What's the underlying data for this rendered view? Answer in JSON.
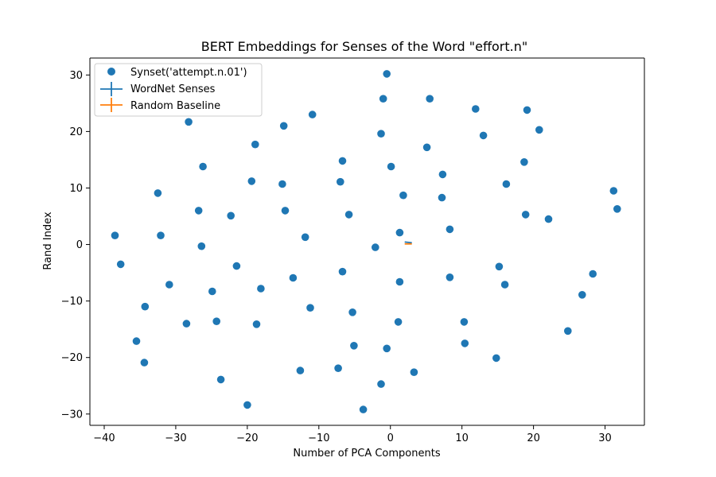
{
  "chart_data": {
    "type": "scatter",
    "title": "BERT Embeddings for Senses of the Word \"effort.n\"",
    "xlabel": "Number of PCA Components",
    "ylabel": "Rand Index",
    "xlim": [
      -42,
      35.5
    ],
    "ylim": [
      -32,
      33
    ],
    "xticks": [
      -40,
      -30,
      -20,
      -10,
      0,
      10,
      20,
      30
    ],
    "yticks": [
      -30,
      -20,
      -10,
      0,
      10,
      20,
      30
    ],
    "xtick_labels": [
      "−40",
      "−30",
      "−20",
      "−10",
      "0",
      "10",
      "20",
      "30"
    ],
    "ytick_labels": [
      "−30",
      "−20",
      "−10",
      "0",
      "10",
      "20",
      "30"
    ],
    "grid": false,
    "legend_position": "top-left",
    "series": [
      {
        "name": "Synset('attempt.n.01')",
        "kind": "scatter",
        "color": "#1f77b4",
        "points": [
          [
            -0.5,
            30.2
          ],
          [
            -1.0,
            25.8
          ],
          [
            5.5,
            25.8
          ],
          [
            11.9,
            24.0
          ],
          [
            19.1,
            23.8
          ],
          [
            -10.9,
            23.0
          ],
          [
            -28.2,
            21.7
          ],
          [
            -14.9,
            21.0
          ],
          [
            20.8,
            20.3
          ],
          [
            -1.3,
            19.6
          ],
          [
            13.0,
            19.3
          ],
          [
            -18.9,
            17.7
          ],
          [
            5.1,
            17.2
          ],
          [
            -6.7,
            14.8
          ],
          [
            18.7,
            14.6
          ],
          [
            -26.2,
            13.8
          ],
          [
            0.1,
            13.8
          ],
          [
            7.3,
            12.4
          ],
          [
            -19.4,
            11.2
          ],
          [
            -7.0,
            11.1
          ],
          [
            -15.1,
            10.7
          ],
          [
            16.2,
            10.7
          ],
          [
            31.2,
            9.5
          ],
          [
            -32.5,
            9.1
          ],
          [
            1.8,
            8.7
          ],
          [
            7.2,
            8.3
          ],
          [
            31.7,
            6.3
          ],
          [
            -26.8,
            6.0
          ],
          [
            -14.7,
            6.0
          ],
          [
            -5.8,
            5.3
          ],
          [
            18.9,
            5.3
          ],
          [
            -22.3,
            5.1
          ],
          [
            22.1,
            4.5
          ],
          [
            8.3,
            2.7
          ],
          [
            1.3,
            2.1
          ],
          [
            -38.5,
            1.6
          ],
          [
            -32.1,
            1.6
          ],
          [
            -11.9,
            1.3
          ],
          [
            -26.4,
            -0.3
          ],
          [
            -2.1,
            -0.5
          ],
          [
            -37.7,
            -3.5
          ],
          [
            -21.5,
            -3.8
          ],
          [
            15.2,
            -3.9
          ],
          [
            -6.7,
            -4.8
          ],
          [
            28.3,
            -5.2
          ],
          [
            -13.6,
            -5.9
          ],
          [
            8.3,
            -5.8
          ],
          [
            1.3,
            -6.6
          ],
          [
            -30.9,
            -7.1
          ],
          [
            16.0,
            -7.1
          ],
          [
            -18.1,
            -7.8
          ],
          [
            -24.9,
            -8.3
          ],
          [
            26.8,
            -8.9
          ],
          [
            -34.3,
            -11.0
          ],
          [
            -11.2,
            -11.2
          ],
          [
            -5.3,
            -12.0
          ],
          [
            -28.5,
            -14.0
          ],
          [
            -24.3,
            -13.6
          ],
          [
            1.1,
            -13.7
          ],
          [
            10.3,
            -13.7
          ],
          [
            -18.7,
            -14.1
          ],
          [
            24.8,
            -15.3
          ],
          [
            -35.5,
            -17.1
          ],
          [
            10.4,
            -17.5
          ],
          [
            -5.1,
            -17.9
          ],
          [
            -0.5,
            -18.4
          ],
          [
            14.8,
            -20.1
          ],
          [
            -34.4,
            -20.9
          ],
          [
            -12.6,
            -22.3
          ],
          [
            -7.3,
            -21.9
          ],
          [
            3.3,
            -22.6
          ],
          [
            -23.7,
            -23.9
          ],
          [
            -1.3,
            -24.7
          ],
          [
            -20.0,
            -28.4
          ],
          [
            -3.8,
            -29.2
          ]
        ]
      },
      {
        "name": "WordNet Senses",
        "kind": "errorbar",
        "color": "#1f77b4",
        "points": [
          [
            2.0,
            0.45
          ],
          [
            3.0,
            0.3
          ]
        ]
      },
      {
        "name": "Random Baseline",
        "kind": "errorbar",
        "color": "#ff7f0e",
        "points": [
          [
            2.0,
            0.1
          ],
          [
            3.0,
            0.1
          ]
        ]
      }
    ]
  }
}
